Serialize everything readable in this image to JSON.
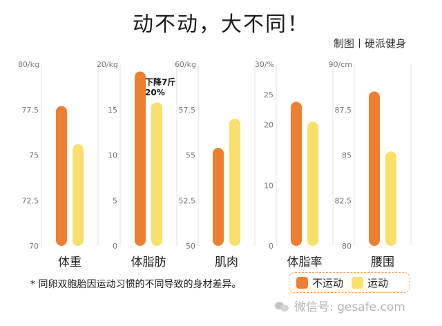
{
  "title": "动不动，大不同！",
  "credit": "制图丨硬派健身",
  "colors": {
    "exercise_no": "#ed7f33",
    "exercise_yes": "#f8e06a",
    "grid": "#e2e2e2",
    "axis_text": "#777777"
  },
  "chart_data": [
    {
      "type": "bar",
      "xlabel": "体重",
      "unit": "80/kg",
      "ylim": [
        70,
        80
      ],
      "ticks": [
        "70",
        "72.5",
        "75",
        "77.5"
      ],
      "series": [
        {
          "name": "不运动",
          "values": [
            77.7
          ]
        },
        {
          "name": "运动",
          "values": [
            75.6
          ]
        }
      ]
    },
    {
      "type": "bar",
      "xlabel": "体脂肪",
      "unit": "20/kg",
      "ylim": [
        0,
        20
      ],
      "ticks": [
        "0",
        "5",
        "10",
        "15"
      ],
      "series": [
        {
          "name": "不运动",
          "values": [
            19.2
          ]
        },
        {
          "name": "运动",
          "values": [
            15.8
          ]
        }
      ],
      "annotation": [
        "下降7斤",
        "20%"
      ]
    },
    {
      "type": "bar",
      "xlabel": "肌肉",
      "unit": "60/kg",
      "ylim": [
        50,
        60
      ],
      "ticks": [
        "50",
        "52.5",
        "55",
        "57.5"
      ],
      "series": [
        {
          "name": "不运动",
          "values": [
            55.4
          ]
        },
        {
          "name": "运动",
          "values": [
            57.0
          ]
        }
      ]
    },
    {
      "type": "bar",
      "xlabel": "体脂率",
      "unit": "30/%",
      "ylim": [
        0,
        30
      ],
      "ticks": [
        "0",
        "10",
        "20",
        "25"
      ],
      "series": [
        {
          "name": "不运动",
          "values": [
            23.8
          ]
        },
        {
          "name": "运动",
          "values": [
            20.5
          ]
        }
      ]
    },
    {
      "type": "bar",
      "xlabel": "腰围",
      "unit": "90/cm",
      "ylim": [
        80,
        90
      ],
      "ticks": [
        "80",
        "82.5",
        "85",
        "87.5"
      ],
      "series": [
        {
          "name": "不运动",
          "values": [
            88.5
          ]
        },
        {
          "name": "运动",
          "values": [
            85.2
          ]
        }
      ]
    }
  ],
  "footnote": "* 同卵双胞胎因运动习惯的不同导致的身材差异。",
  "legend": {
    "no_exercise": "不运动",
    "exercise": "运动"
  },
  "watermark": "微信号: gesafe.com"
}
